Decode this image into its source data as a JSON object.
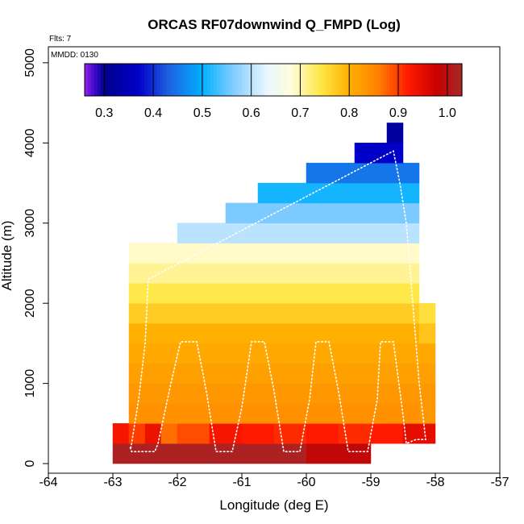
{
  "chart_data": {
    "type": "heatmap",
    "title": "ORCAS RF07downwind Q_FMPD (Log)",
    "subtitle_flights": "Flts: 7",
    "subtitle_date": "MMDD: 0130",
    "xlabel": "Longitude (deg E)",
    "ylabel": "Altitude (m)",
    "xlim": [
      -64,
      -57
    ],
    "ylim": [
      -120,
      5200
    ],
    "x_ticks": [
      -64,
      -63,
      -62,
      -61,
      -60,
      -59,
      -58,
      -57
    ],
    "x_tick_labels": [
      "-64",
      "-63",
      "-62",
      "-61",
      "-60",
      "-59",
      "-58",
      "-57"
    ],
    "y_ticks": [
      0,
      1000,
      2000,
      3000,
      4000,
      5000
    ],
    "y_tick_labels": [
      "0",
      "1000",
      "2000",
      "3000",
      "4000",
      "5000"
    ],
    "colorbar": {
      "range": [
        0.26,
        1.03
      ],
      "ticks": [
        0.3,
        0.4,
        0.5,
        0.6,
        0.7,
        0.8,
        0.9,
        1.0
      ],
      "tick_labels": [
        "0.3",
        "0.4",
        "0.5",
        "0.6",
        "0.7",
        "0.8",
        "0.9",
        "1.0"
      ],
      "stops": [
        {
          "v": 0.26,
          "c": "#9b1fe8"
        },
        {
          "v": 0.28,
          "c": "#3b0bcf"
        },
        {
          "v": 0.3,
          "c": "#00008b"
        },
        {
          "v": 0.37,
          "c": "#0000c8"
        },
        {
          "v": 0.43,
          "c": "#1e5fe0"
        },
        {
          "v": 0.5,
          "c": "#00b0ff"
        },
        {
          "v": 0.56,
          "c": "#7ccaff"
        },
        {
          "v": 0.63,
          "c": "#e8f6ff"
        },
        {
          "v": 0.68,
          "c": "#fffde0"
        },
        {
          "v": 0.74,
          "c": "#ffe84a"
        },
        {
          "v": 0.8,
          "c": "#ffb000"
        },
        {
          "v": 0.86,
          "c": "#ff8000"
        },
        {
          "v": 0.92,
          "c": "#ff1a00"
        },
        {
          "v": 0.98,
          "c": "#c80000"
        },
        {
          "v": 1.03,
          "c": "#a52a2a"
        }
      ]
    },
    "bin_size": {
      "lon": 0.25,
      "alt": 250
    },
    "cells": [
      [
        0,
        -63.0,
        -60.0,
        1.02
      ],
      [
        0,
        -60.0,
        -59.0,
        0.99
      ],
      [
        1,
        -63.0,
        -62.75,
        0.93
      ],
      [
        1,
        -62.75,
        -62.5,
        0.9
      ],
      [
        1,
        -62.5,
        -62.25,
        0.94
      ],
      [
        1,
        -62.25,
        -62.0,
        0.87
      ],
      [
        1,
        -62.0,
        -61.5,
        0.89
      ],
      [
        1,
        -61.5,
        -61.0,
        0.93
      ],
      [
        1,
        -61.0,
        -60.5,
        0.92
      ],
      [
        1,
        -60.5,
        -60.0,
        0.91
      ],
      [
        1,
        -60.0,
        -59.5,
        0.92
      ],
      [
        1,
        -59.5,
        -59.0,
        0.91
      ],
      [
        1,
        -59.0,
        -58.5,
        0.92
      ],
      [
        1,
        -58.5,
        -58.0,
        0.95
      ],
      [
        2,
        -62.75,
        -58.25,
        0.84
      ],
      [
        2,
        -58.25,
        -58.0,
        0.83
      ],
      [
        3,
        -62.75,
        -58.0,
        0.83
      ],
      [
        4,
        -62.75,
        -58.0,
        0.82
      ],
      [
        5,
        -62.75,
        -58.0,
        0.81
      ],
      [
        6,
        -62.75,
        -58.25,
        0.8
      ],
      [
        6,
        -58.25,
        -58.0,
        0.78
      ],
      [
        7,
        -62.75,
        -58.25,
        0.77
      ],
      [
        7,
        -58.25,
        -58.0,
        0.75
      ],
      [
        8,
        -62.75,
        -58.25,
        0.74
      ],
      [
        9,
        -62.75,
        -58.25,
        0.71
      ],
      [
        10,
        -62.75,
        -58.25,
        0.69
      ],
      [
        11,
        -62.0,
        -58.25,
        0.6
      ],
      [
        12,
        -61.25,
        -58.25,
        0.56
      ],
      [
        13,
        -60.75,
        -58.25,
        0.51
      ],
      [
        14,
        -60.0,
        -58.25,
        0.45
      ],
      [
        15,
        -59.25,
        -58.5,
        0.37
      ],
      [
        16,
        -58.75,
        -58.5,
        0.32
      ]
    ],
    "flight_track": [
      [
        -62.73,
        200
      ],
      [
        -62.71,
        150
      ],
      [
        -62.35,
        150
      ],
      [
        -62.3,
        250
      ],
      [
        -62.1,
        1000
      ],
      [
        -61.95,
        1520
      ],
      [
        -61.7,
        1520
      ],
      [
        -61.55,
        900
      ],
      [
        -61.4,
        150
      ],
      [
        -61.15,
        150
      ],
      [
        -61.0,
        700
      ],
      [
        -60.85,
        1520
      ],
      [
        -60.65,
        1520
      ],
      [
        -60.5,
        900
      ],
      [
        -60.35,
        150
      ],
      [
        -60.1,
        150
      ],
      [
        -59.95,
        800
      ],
      [
        -59.85,
        1520
      ],
      [
        -59.65,
        1520
      ],
      [
        -59.5,
        900
      ],
      [
        -59.35,
        150
      ],
      [
        -59.05,
        150
      ],
      [
        -58.9,
        800
      ],
      [
        -58.85,
        1520
      ],
      [
        -58.65,
        1520
      ],
      [
        -58.5,
        600
      ],
      [
        -58.45,
        250
      ],
      [
        -58.3,
        300
      ],
      [
        -58.15,
        300
      ],
      [
        -58.25,
        1000
      ],
      [
        -58.35,
        2000
      ],
      [
        -58.45,
        3000
      ],
      [
        -58.55,
        3500
      ],
      [
        -58.65,
        3900
      ],
      [
        -62.45,
        2300
      ],
      [
        -62.5,
        1500
      ],
      [
        -62.6,
        800
      ],
      [
        -62.72,
        200
      ]
    ]
  }
}
